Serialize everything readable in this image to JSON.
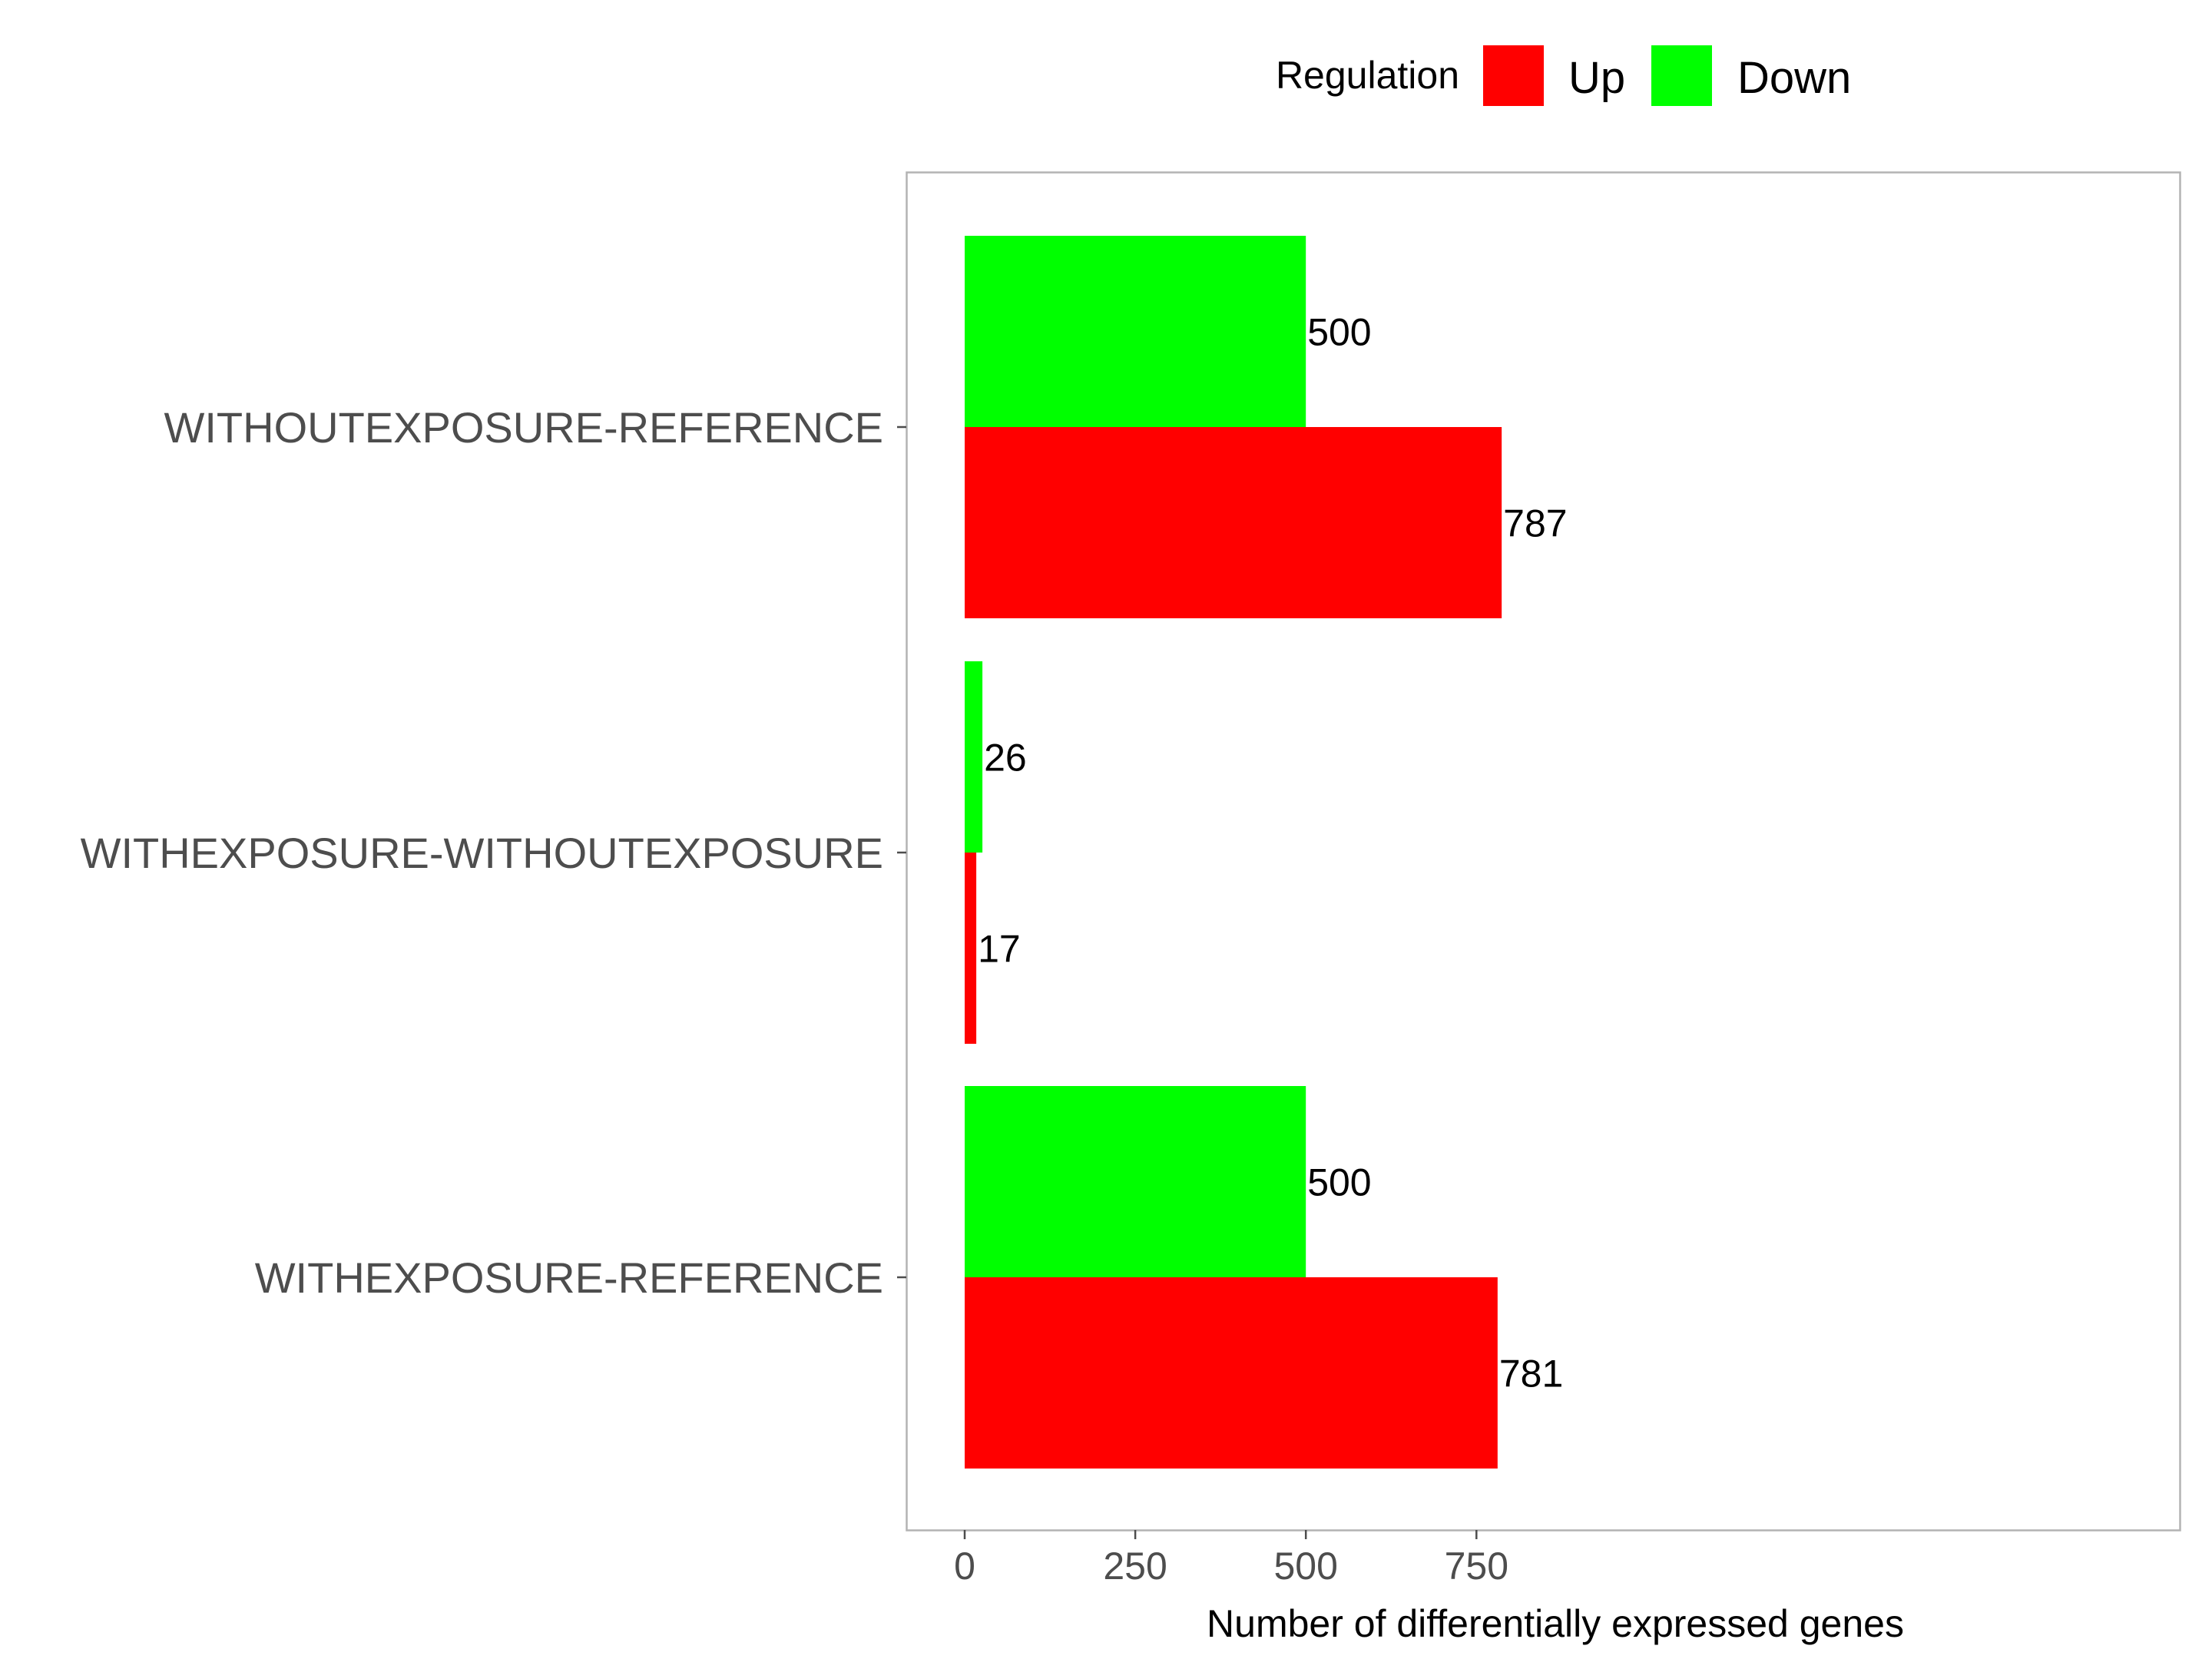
{
  "chart_data": {
    "type": "bar",
    "orientation": "horizontal",
    "categories": [
      "WITHOUTEXPOSURE-REFERENCE",
      "WITHEXPOSURE-WITHOUTEXPOSURE",
      "WITHEXPOSURE-REFERENCE"
    ],
    "series": [
      {
        "name": "Up",
        "color": "#ff0000",
        "values": [
          787,
          17,
          781
        ]
      },
      {
        "name": "Down",
        "color": "#00ff00",
        "values": [
          500,
          26,
          500
        ]
      }
    ],
    "xlabel": "Number of differentially expressed genes",
    "ylabel": "",
    "xlim": [
      -42.5,
      893
    ],
    "x_ticks": [
      0,
      250,
      500,
      750
    ],
    "x_tick_labels": [
      "0",
      "250",
      "500",
      "750"
    ],
    "legend": {
      "title": "Regulation",
      "position": "top",
      "items": [
        "Up",
        "Down"
      ]
    },
    "grid": false,
    "data_labels": true
  }
}
